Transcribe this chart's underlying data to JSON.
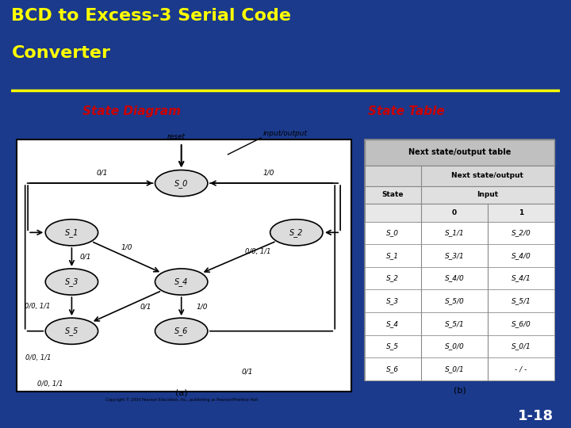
{
  "title_line1": "BCD to Excess-3 Serial Code",
  "title_line2": "Converter",
  "title_color": "#FFFF00",
  "bg_color": "#1B3A8C",
  "underline_color": "#FFFF00",
  "left_label": "State Diagram",
  "right_label": "State Table",
  "label_color": "#CC0000",
  "slide_num": "1-18",
  "table_rows": [
    [
      "S_0",
      "S_1/1",
      "S_2/0"
    ],
    [
      "S_1",
      "S_3/1",
      "S_4/0"
    ],
    [
      "S_2",
      "S_4/0",
      "S_4/1"
    ],
    [
      "S_3",
      "S_5/0",
      "S_5/1"
    ],
    [
      "S_4",
      "S_5/1",
      "S_6/0"
    ],
    [
      "S_5",
      "S_0/0",
      "S_0/1"
    ],
    [
      "S_6",
      "S_0/1",
      "- / -"
    ]
  ]
}
